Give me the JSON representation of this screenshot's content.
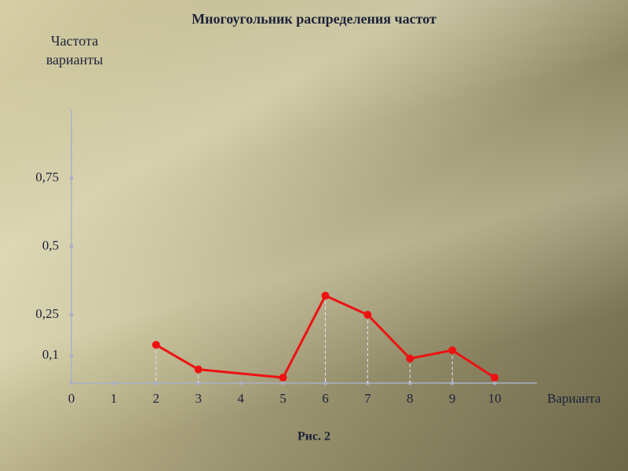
{
  "chart_data": {
    "type": "line",
    "title": "Многоугольник распределения частот",
    "y_label": "Частота варианты",
    "x_label": "Варианта",
    "caption": "Рис. 2",
    "x": [
      2,
      3,
      5,
      6,
      7,
      8,
      9,
      10
    ],
    "series": [
      {
        "color": "#ee1111",
        "values": [
          0.14,
          0.05,
          0.02,
          0.32,
          0.25,
          0.09,
          0.12,
          0.02
        ]
      }
    ],
    "xlim": [
      0,
      11
    ],
    "xticks": [
      0,
      1,
      2,
      3,
      4,
      5,
      6,
      7,
      8,
      9,
      10
    ],
    "ylim": [
      0,
      1
    ],
    "yticks": [
      {
        "value": 0.1,
        "label": "0,1"
      },
      {
        "value": 0.25,
        "label": "0,25"
      },
      {
        "value": 0.5,
        "label": "0,5"
      },
      {
        "value": 0.75,
        "label": "0,75"
      }
    ]
  }
}
